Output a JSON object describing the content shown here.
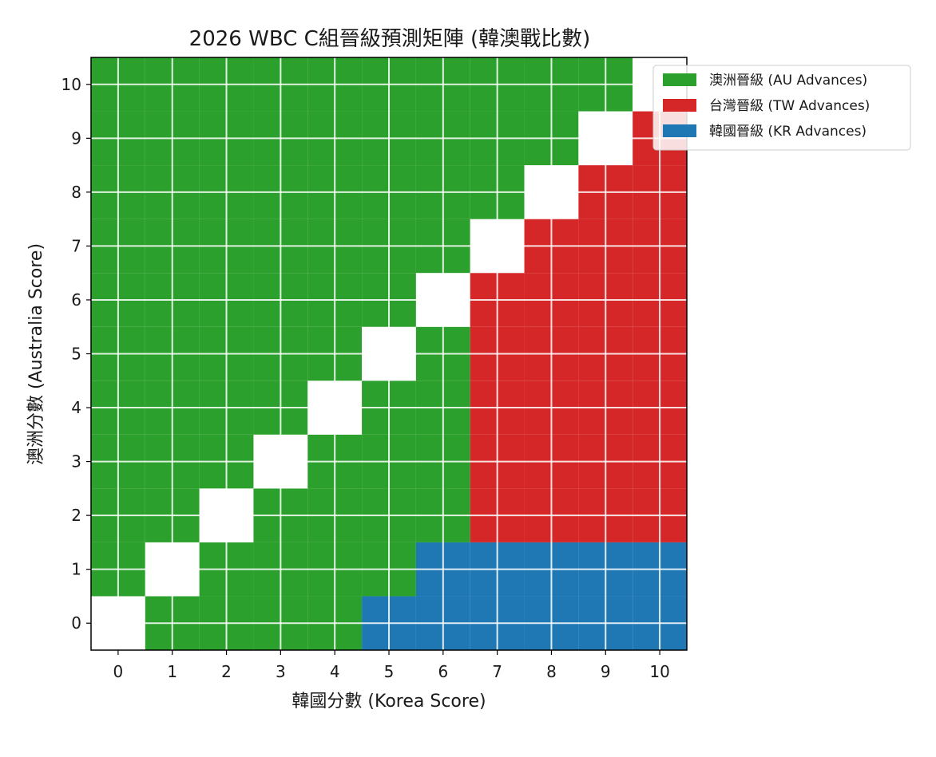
{
  "chart_data": {
    "type": "heatmap",
    "title": "2026 WBC C組晉級預測矩陣 (韓澳戰比數)",
    "xlabel": "韓國分數 (Korea Score)",
    "ylabel": "澳洲分數 (Australia Score)",
    "x_ticks": [
      "0",
      "1",
      "2",
      "3",
      "4",
      "5",
      "6",
      "7",
      "8",
      "9",
      "10"
    ],
    "y_ticks": [
      "0",
      "1",
      "2",
      "3",
      "4",
      "5",
      "6",
      "7",
      "8",
      "9",
      "10"
    ],
    "xlim": [
      -0.5,
      10.5
    ],
    "ylim": [
      -0.5,
      10.5
    ],
    "grid": true,
    "legend_position": "top-right",
    "categories": [
      {
        "key": "AU",
        "label": "澳洲晉級 (AU Advances)",
        "color": "#2ca02c"
      },
      {
        "key": "TW",
        "label": "台灣晉級 (TW Advances)",
        "color": "#d62728"
      },
      {
        "key": "KR",
        "label": "韓國晉級 (KR Advances)",
        "color": "#1f77b4"
      }
    ],
    "tie_color": "#ffffff",
    "row_order": "australia_score_0_to_10",
    "col_order": "korea_score_0_to_10",
    "matrix": [
      [
        "tie",
        "AU",
        "AU",
        "AU",
        "AU",
        "KR",
        "KR",
        "KR",
        "KR",
        "KR",
        "KR"
      ],
      [
        "AU",
        "tie",
        "AU",
        "AU",
        "AU",
        "AU",
        "KR",
        "KR",
        "KR",
        "KR",
        "KR"
      ],
      [
        "AU",
        "AU",
        "tie",
        "AU",
        "AU",
        "AU",
        "AU",
        "TW",
        "TW",
        "TW",
        "TW"
      ],
      [
        "AU",
        "AU",
        "AU",
        "tie",
        "AU",
        "AU",
        "AU",
        "TW",
        "TW",
        "TW",
        "TW"
      ],
      [
        "AU",
        "AU",
        "AU",
        "AU",
        "tie",
        "AU",
        "AU",
        "TW",
        "TW",
        "TW",
        "TW"
      ],
      [
        "AU",
        "AU",
        "AU",
        "AU",
        "AU",
        "tie",
        "AU",
        "TW",
        "TW",
        "TW",
        "TW"
      ],
      [
        "AU",
        "AU",
        "AU",
        "AU",
        "AU",
        "AU",
        "tie",
        "TW",
        "TW",
        "TW",
        "TW"
      ],
      [
        "AU",
        "AU",
        "AU",
        "AU",
        "AU",
        "AU",
        "AU",
        "tie",
        "TW",
        "TW",
        "TW"
      ],
      [
        "AU",
        "AU",
        "AU",
        "AU",
        "AU",
        "AU",
        "AU",
        "AU",
        "tie",
        "TW",
        "TW"
      ],
      [
        "AU",
        "AU",
        "AU",
        "AU",
        "AU",
        "AU",
        "AU",
        "AU",
        "AU",
        "tie",
        "TW"
      ],
      [
        "AU",
        "AU",
        "AU",
        "AU",
        "AU",
        "AU",
        "AU",
        "AU",
        "AU",
        "AU",
        "tie"
      ]
    ]
  }
}
